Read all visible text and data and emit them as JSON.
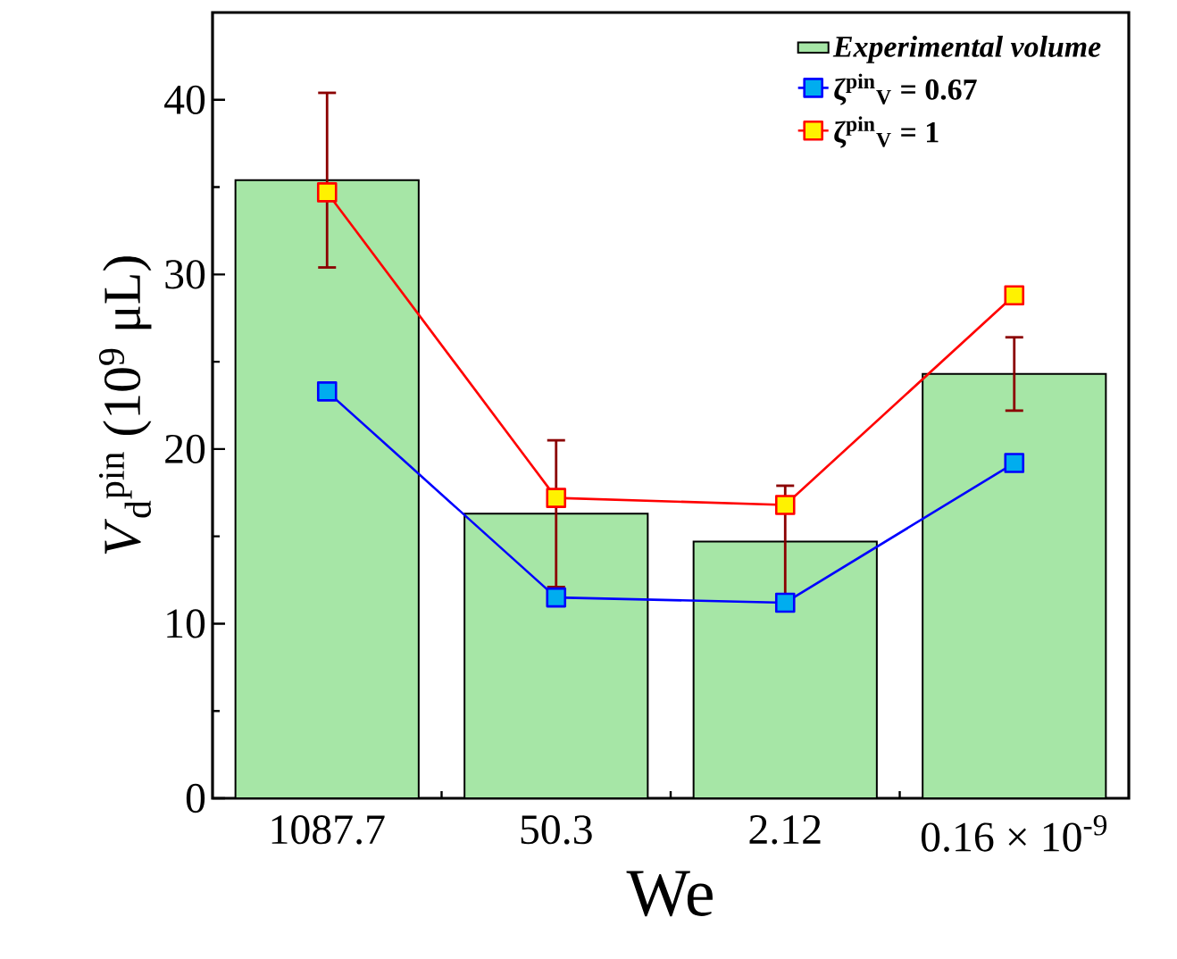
{
  "chart_data": {
    "type": "bar",
    "xlabel": "We",
    "ylabel": "*V*$_{d}$$^{pin}$ (10$^{9}$ μL)",
    "categories": [
      "1087.7",
      "50.3",
      "2.12",
      "0.16 × 10$^{-9}$"
    ],
    "series": [
      {
        "name": "Experimental volume",
        "color": "#a6e6a6",
        "values": [
          35.4,
          16.3,
          14.7,
          24.3
        ],
        "errors": [
          5,
          4.2,
          3.2,
          2.1
        ]
      },
      {
        "type": "line",
        "name": "ζ$^{pin}$$_{V}$ = 0.67",
        "color": "#0000ff",
        "values": [
          23.3,
          11.5,
          11.2,
          19.2
        ]
      },
      {
        "type": "line",
        "name": "ζ$^{pin}$$_{V}$ = 1",
        "color": "#ff0000",
        "values": [
          34.7,
          17.2,
          16.8,
          28.8
        ]
      }
    ],
    "ylim": [
      0,
      45
    ],
    "yticks": [
      0,
      10,
      20,
      30,
      40
    ],
    "grid": false,
    "legend": "top right",
    "marker": "square",
    "line_style": "solid"
  }
}
